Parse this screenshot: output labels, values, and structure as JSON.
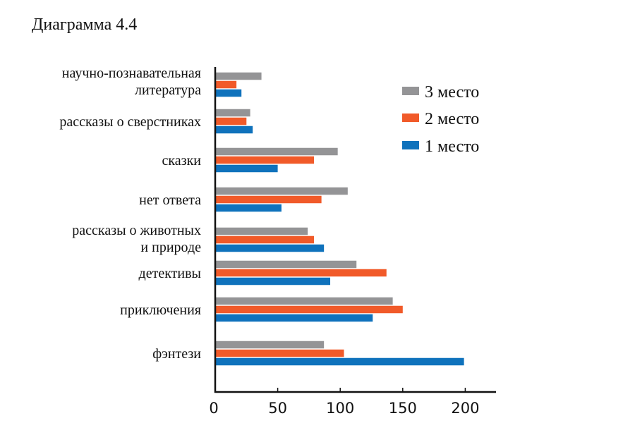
{
  "chart_data": {
    "type": "bar",
    "orientation": "horizontal",
    "title": "Диаграмма 4.4",
    "categories": [
      [
        "научно-познавательная",
        "литература"
      ],
      [
        "рассказы о сверстниках"
      ],
      [
        "сказки"
      ],
      [
        "нет ответа"
      ],
      [
        "рассказы о животных",
        "и природе"
      ],
      [
        "детективы"
      ],
      [
        "приключения"
      ],
      [
        "фэнтези"
      ]
    ],
    "series": [
      {
        "name": "3 место",
        "color": "#949496",
        "values": [
          37,
          28,
          98,
          106,
          74,
          113,
          142,
          87
        ]
      },
      {
        "name": "2 место",
        "color": "#f15a29",
        "values": [
          17,
          25,
          79,
          85,
          79,
          137,
          150,
          103
        ]
      },
      {
        "name": "1 место",
        "color": "#0f72bc",
        "values": [
          21,
          30,
          50,
          53,
          87,
          92,
          126,
          199
        ]
      }
    ],
    "xlim": [
      0,
      225
    ],
    "xticks": [
      0,
      50,
      100,
      150,
      200
    ],
    "legend": "top-right",
    "grid": false
  }
}
